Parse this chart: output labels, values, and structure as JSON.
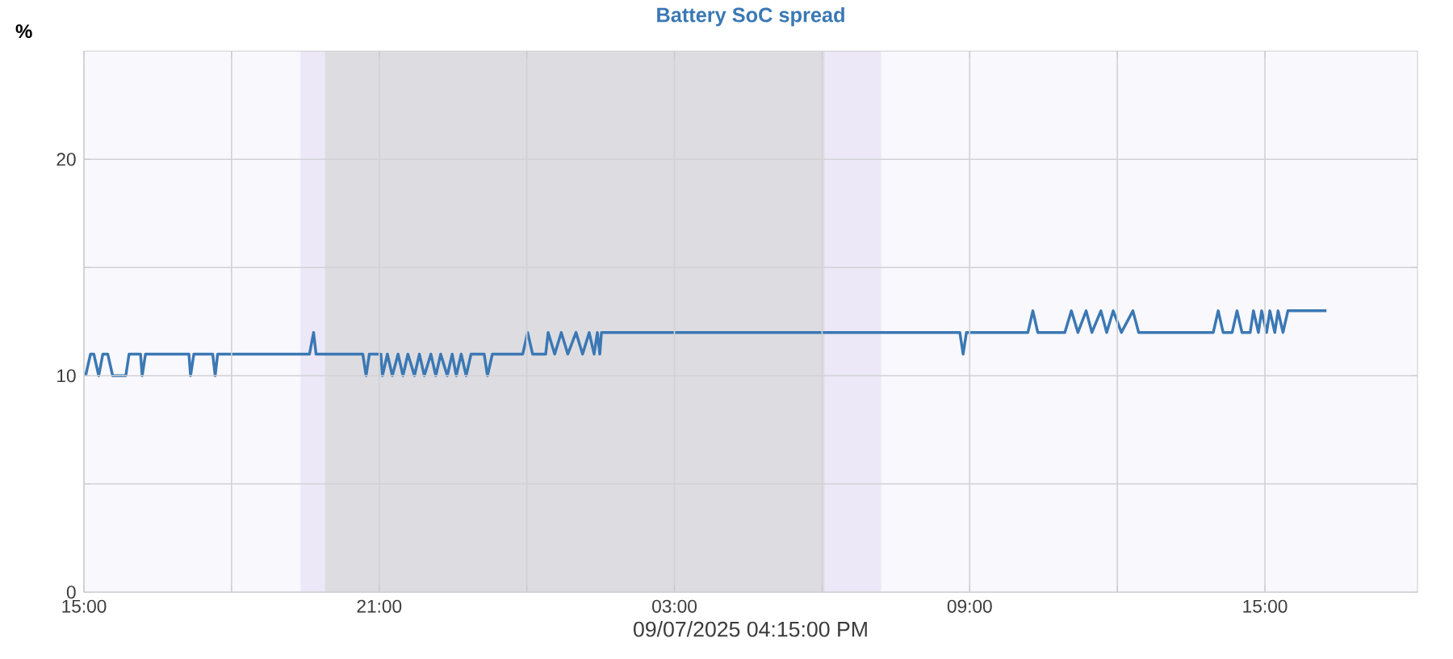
{
  "chart_data": {
    "type": "line",
    "title": "Battery SoC spread",
    "xlabel": "09/07/2025 04:15:00 PM",
    "ylabel": "%",
    "xlim": [
      "2025-09-06T15:00",
      "2025-09-07T18:06"
    ],
    "ylim": [
      0,
      25
    ],
    "xticks": [
      {
        "value": "2025-09-06T15:00",
        "label": "15:00"
      },
      {
        "value": "2025-09-06T18:00",
        "label": null
      },
      {
        "value": "2025-09-06T21:00",
        "label": "21:00"
      },
      {
        "value": "2025-09-07T00:00",
        "label": null
      },
      {
        "value": "2025-09-07T03:00",
        "label": "03:00"
      },
      {
        "value": "2025-09-07T06:00",
        "label": null
      },
      {
        "value": "2025-09-07T09:00",
        "label": "09:00"
      },
      {
        "value": "2025-09-07T12:00",
        "label": null
      },
      {
        "value": "2025-09-07T15:00",
        "label": "15:00"
      }
    ],
    "yticks": [
      0,
      {
        "value": 5,
        "label": null
      },
      10,
      {
        "value": 15,
        "label": null
      },
      20
    ],
    "grid": true,
    "bands": [
      {
        "axis": "x",
        "from": "2025-09-06T19:24",
        "to": "2025-09-07T07:12",
        "color": "#ece8f7"
      },
      {
        "axis": "x",
        "from": "2025-09-06T19:54",
        "to": "2025-09-07T06:03",
        "color": "#dddde1"
      }
    ],
    "series": [
      {
        "color": "#3b78b4",
        "x": [
          "2025-09-06T15:02",
          "2025-09-06T15:08",
          "2025-09-06T15:12",
          "2025-09-06T15:18",
          "2025-09-06T15:23",
          "2025-09-06T15:29",
          "2025-09-06T15:35",
          "2025-09-06T15:51",
          "2025-09-06T15:55",
          "2025-09-06T16:09",
          "2025-09-06T16:11",
          "2025-09-06T16:15",
          "2025-09-06T17:08",
          "2025-09-06T17:10",
          "2025-09-06T17:14",
          "2025-09-06T17:37",
          "2025-09-06T17:40",
          "2025-09-06T17:43",
          "2025-09-06T19:35",
          "2025-09-06T19:40",
          "2025-09-06T19:43",
          "2025-09-06T20:40",
          "2025-09-06T20:44",
          "2025-09-06T20:48",
          "2025-09-06T21:02",
          "2025-09-06T21:04",
          "2025-09-06T21:10",
          "2025-09-06T21:16",
          "2025-09-06T21:23",
          "2025-09-06T21:29",
          "2025-09-06T21:35",
          "2025-09-06T21:43",
          "2025-09-06T21:49",
          "2025-09-06T21:55",
          "2025-09-06T22:03",
          "2025-09-06T22:09",
          "2025-09-06T22:15",
          "2025-09-06T22:23",
          "2025-09-06T22:29",
          "2025-09-06T22:34",
          "2025-09-06T22:40",
          "2025-09-06T22:46",
          "2025-09-06T22:52",
          "2025-09-06T23:08",
          "2025-09-06T23:12",
          "2025-09-06T23:18",
          "2025-09-06T23:55",
          "2025-09-07T00:01",
          "2025-09-07T00:07",
          "2025-09-07T00:23",
          "2025-09-07T00:26",
          "2025-09-07T00:34",
          "2025-09-07T00:42",
          "2025-09-07T00:50",
          "2025-09-07T01:00",
          "2025-09-07T01:08",
          "2025-09-07T01:16",
          "2025-09-07T01:22",
          "2025-09-07T01:26",
          "2025-09-07T01:29",
          "2025-09-07T01:31",
          "2025-09-07T08:48",
          "2025-09-07T08:52",
          "2025-09-07T08:56",
          "2025-09-07T10:11",
          "2025-09-07T10:17",
          "2025-09-07T10:23",
          "2025-09-07T10:56",
          "2025-09-07T11:04",
          "2025-09-07T11:12",
          "2025-09-07T11:22",
          "2025-09-07T11:29",
          "2025-09-07T11:40",
          "2025-09-07T11:47",
          "2025-09-07T11:55",
          "2025-09-07T12:05",
          "2025-09-07T12:19",
          "2025-09-07T12:26",
          "2025-09-07T13:57",
          "2025-09-07T14:03",
          "2025-09-07T14:09",
          "2025-09-07T14:20",
          "2025-09-07T14:26",
          "2025-09-07T14:32",
          "2025-09-07T14:42",
          "2025-09-07T14:46",
          "2025-09-07T14:52",
          "2025-09-07T14:56",
          "2025-09-07T15:02",
          "2025-09-07T15:06",
          "2025-09-07T15:12",
          "2025-09-07T15:16",
          "2025-09-07T15:22",
          "2025-09-07T15:28",
          "2025-09-07T16:15"
        ],
        "values": [
          10,
          11,
          11,
          10,
          11,
          11,
          10,
          10,
          11,
          11,
          10,
          11,
          11,
          10,
          11,
          11,
          10,
          11,
          11,
          12,
          11,
          11,
          10,
          11,
          11,
          10,
          11,
          10,
          11,
          10,
          11,
          10,
          11,
          10,
          11,
          10,
          11,
          10,
          11,
          10,
          11,
          10,
          11,
          11,
          10,
          11,
          11,
          12,
          11,
          11,
          12,
          11,
          12,
          11,
          12,
          11,
          12,
          11,
          12,
          11,
          12,
          12,
          11,
          12,
          12,
          13,
          12,
          12,
          13,
          12,
          13,
          12,
          13,
          12,
          13,
          12,
          13,
          12,
          12,
          13,
          12,
          12,
          13,
          12,
          12,
          13,
          12,
          13,
          12,
          13,
          12,
          13,
          12,
          13,
          13
        ]
      }
    ]
  }
}
